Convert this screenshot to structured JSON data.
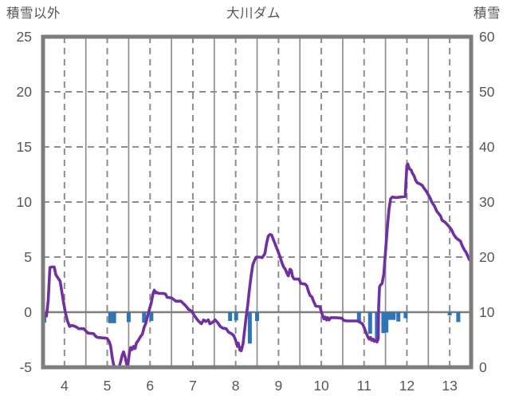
{
  "chart_data": {
    "type": "line",
    "title": "大川ダム",
    "left_axis": {
      "title": "積雪以外",
      "ticks": [
        25,
        20,
        15,
        10,
        5,
        0,
        -5
      ],
      "range": [
        -5,
        25
      ]
    },
    "right_axis": {
      "title": "積雪",
      "ticks": [
        60,
        50,
        40,
        30,
        20,
        10,
        0
      ],
      "range": [
        0,
        60
      ]
    },
    "x_axis": {
      "ticks": [
        4,
        5,
        6,
        7,
        8,
        9,
        10,
        11,
        12,
        13
      ],
      "range": [
        3.5,
        13.5
      ],
      "solid_gridlines": [
        4.5,
        5.5,
        6.5,
        7.5,
        8.5,
        9.5,
        10.5,
        11.5,
        12.5
      ],
      "dashed_gridlines": [
        4,
        5,
        6,
        7,
        8,
        9,
        10,
        11,
        12,
        13
      ]
    },
    "h_gridlines": [
      20,
      15,
      10,
      5
    ],
    "zero_line": 0,
    "legend": "none",
    "grid": "on",
    "series": [
      {
        "name": "snow-depth-line",
        "type": "line",
        "axis": "left",
        "color": "#7030a0",
        "points": [
          [
            3.5,
            -0.33
          ],
          [
            3.58,
            -0.35
          ],
          [
            3.62,
            1.0
          ],
          [
            3.66,
            4.05
          ],
          [
            3.7,
            4.1
          ],
          [
            3.76,
            4.1
          ],
          [
            3.8,
            3.4
          ],
          [
            3.85,
            3.1
          ],
          [
            3.9,
            2.8
          ],
          [
            3.97,
            1.1
          ],
          [
            4.02,
            0.0
          ],
          [
            4.07,
            -0.8
          ],
          [
            4.12,
            -1.3
          ],
          [
            4.17,
            -1.2
          ],
          [
            4.22,
            -1.25
          ],
          [
            4.28,
            -1.35
          ],
          [
            4.33,
            -1.5
          ],
          [
            4.45,
            -1.5
          ],
          [
            4.5,
            -1.7
          ],
          [
            4.55,
            -1.9
          ],
          [
            4.68,
            -1.95
          ],
          [
            4.73,
            -2.2
          ],
          [
            4.78,
            -2.3
          ],
          [
            4.95,
            -2.35
          ],
          [
            5.0,
            -2.4
          ],
          [
            5.05,
            -2.7
          ],
          [
            5.08,
            -3.1
          ],
          [
            5.12,
            -4.2
          ],
          [
            5.15,
            -4.8
          ],
          [
            5.18,
            -5.0
          ],
          [
            5.28,
            -4.95
          ],
          [
            5.32,
            -4.4
          ],
          [
            5.35,
            -3.9
          ],
          [
            5.38,
            -3.6
          ],
          [
            5.42,
            -4.1
          ],
          [
            5.45,
            -4.7
          ],
          [
            5.48,
            -4.85
          ],
          [
            5.52,
            -3.6
          ],
          [
            5.55,
            -3.2
          ],
          [
            5.58,
            -3.4
          ],
          [
            5.62,
            -3.1
          ],
          [
            5.65,
            -3.3
          ],
          [
            5.68,
            -2.8
          ],
          [
            5.72,
            -2.6
          ],
          [
            5.78,
            -2.2
          ],
          [
            5.82,
            -2.0
          ],
          [
            5.86,
            -1.4
          ],
          [
            5.9,
            -1.0
          ],
          [
            5.94,
            -0.4
          ],
          [
            5.98,
            0.2
          ],
          [
            6.03,
            0.9
          ],
          [
            6.07,
            1.7
          ],
          [
            6.1,
            2.0
          ],
          [
            6.13,
            1.75
          ],
          [
            6.16,
            1.8
          ],
          [
            6.2,
            1.7
          ],
          [
            6.3,
            1.7
          ],
          [
            6.36,
            1.65
          ],
          [
            6.4,
            1.35
          ],
          [
            6.5,
            1.3
          ],
          [
            6.55,
            1.15
          ],
          [
            6.6,
            1.0
          ],
          [
            6.72,
            1.0
          ],
          [
            6.8,
            0.7
          ],
          [
            6.85,
            0.5
          ],
          [
            6.9,
            0.25
          ],
          [
            6.97,
            0.1
          ],
          [
            7.03,
            -0.3
          ],
          [
            7.08,
            -0.55
          ],
          [
            7.14,
            -0.85
          ],
          [
            7.2,
            -1.05
          ],
          [
            7.25,
            -0.7
          ],
          [
            7.3,
            -0.85
          ],
          [
            7.36,
            -0.7
          ],
          [
            7.4,
            -1.05
          ],
          [
            7.45,
            -0.95
          ],
          [
            7.52,
            -0.7
          ],
          [
            7.58,
            -0.95
          ],
          [
            7.64,
            -1.3
          ],
          [
            7.7,
            -1.45
          ],
          [
            7.78,
            -1.5
          ],
          [
            7.83,
            -1.8
          ],
          [
            7.9,
            -1.95
          ],
          [
            7.95,
            -2.1
          ],
          [
            7.99,
            -2.45
          ],
          [
            8.02,
            -2.8
          ],
          [
            8.04,
            -3.1
          ],
          [
            8.06,
            -2.8
          ],
          [
            8.08,
            -3.1
          ],
          [
            8.1,
            -3.45
          ],
          [
            8.13,
            -3.5
          ],
          [
            8.17,
            -2.9
          ],
          [
            8.2,
            -1.9
          ],
          [
            8.24,
            -0.6
          ],
          [
            8.28,
            0.6
          ],
          [
            8.32,
            2.0
          ],
          [
            8.36,
            3.3
          ],
          [
            8.4,
            4.3
          ],
          [
            8.44,
            4.7
          ],
          [
            8.48,
            5.0
          ],
          [
            8.56,
            5.0
          ],
          [
            8.62,
            4.95
          ],
          [
            8.68,
            5.3
          ],
          [
            8.72,
            6.2
          ],
          [
            8.76,
            6.9
          ],
          [
            8.8,
            7.05
          ],
          [
            8.84,
            7.0
          ],
          [
            8.88,
            6.6
          ],
          [
            8.93,
            6.1
          ],
          [
            8.98,
            5.6
          ],
          [
            9.03,
            5.1
          ],
          [
            9.08,
            4.5
          ],
          [
            9.12,
            4.1
          ],
          [
            9.16,
            3.9
          ],
          [
            9.2,
            3.5
          ],
          [
            9.23,
            3.3
          ],
          [
            9.27,
            3.9
          ],
          [
            9.3,
            3.8
          ],
          [
            9.33,
            3.2
          ],
          [
            9.37,
            3.0
          ],
          [
            9.48,
            3.0
          ],
          [
            9.52,
            2.6
          ],
          [
            9.62,
            2.55
          ],
          [
            9.66,
            2.4
          ],
          [
            9.7,
            1.9
          ],
          [
            9.74,
            1.5
          ],
          [
            9.78,
            1.4
          ],
          [
            9.83,
            0.9
          ],
          [
            9.87,
            0.55
          ],
          [
            9.97,
            0.5
          ],
          [
            10.0,
            0.0
          ],
          [
            10.03,
            -0.3
          ],
          [
            10.06,
            -0.6
          ],
          [
            10.09,
            -0.45
          ],
          [
            10.12,
            -0.7
          ],
          [
            10.15,
            -0.5
          ],
          [
            10.18,
            -0.7
          ],
          [
            10.22,
            -0.5
          ],
          [
            10.35,
            -0.5
          ],
          [
            10.48,
            -0.55
          ],
          [
            10.53,
            -0.75
          ],
          [
            10.6,
            -0.8
          ],
          [
            10.85,
            -0.8
          ],
          [
            10.92,
            -0.95
          ],
          [
            10.97,
            -1.1
          ],
          [
            11.0,
            -1.4
          ],
          [
            11.03,
            -1.7
          ],
          [
            11.06,
            -2.0
          ],
          [
            11.09,
            -2.25
          ],
          [
            11.12,
            -2.45
          ],
          [
            11.15,
            -2.3
          ],
          [
            11.18,
            -2.55
          ],
          [
            11.21,
            -2.45
          ],
          [
            11.24,
            -2.65
          ],
          [
            11.27,
            -2.55
          ],
          [
            11.3,
            -2.7
          ],
          [
            11.33,
            -2.4
          ],
          [
            11.34,
            0.5
          ],
          [
            11.36,
            2.3
          ],
          [
            11.38,
            2.45
          ],
          [
            11.42,
            2.6
          ],
          [
            11.46,
            3.5
          ],
          [
            11.5,
            5.5
          ],
          [
            11.54,
            7.5
          ],
          [
            11.58,
            9.3
          ],
          [
            11.62,
            10.3
          ],
          [
            11.66,
            10.45
          ],
          [
            11.75,
            10.4
          ],
          [
            11.85,
            10.45
          ],
          [
            11.96,
            10.5
          ],
          [
            11.98,
            12.0
          ],
          [
            12.0,
            13.3
          ],
          [
            12.02,
            13.45
          ],
          [
            12.06,
            13.0
          ],
          [
            12.1,
            12.9
          ],
          [
            12.13,
            12.6
          ],
          [
            12.17,
            12.35
          ],
          [
            12.2,
            12.0
          ],
          [
            12.24,
            11.75
          ],
          [
            12.32,
            11.6
          ],
          [
            12.36,
            11.5
          ],
          [
            12.4,
            11.25
          ],
          [
            12.45,
            11.0
          ],
          [
            12.5,
            10.65
          ],
          [
            12.54,
            10.4
          ],
          [
            12.58,
            10.0
          ],
          [
            12.64,
            9.65
          ],
          [
            12.7,
            9.15
          ],
          [
            12.73,
            9.0
          ],
          [
            12.79,
            8.7
          ],
          [
            12.82,
            8.35
          ],
          [
            12.88,
            8.2
          ],
          [
            12.97,
            7.85
          ],
          [
            13.04,
            7.5
          ],
          [
            13.1,
            7.0
          ],
          [
            13.16,
            6.7
          ],
          [
            13.25,
            6.45
          ],
          [
            13.29,
            6.05
          ],
          [
            13.35,
            5.6
          ],
          [
            13.38,
            5.45
          ],
          [
            13.42,
            5.1
          ],
          [
            13.46,
            4.75
          ]
        ]
      },
      {
        "name": "precipitation-bars",
        "type": "bar",
        "axis": "left",
        "color": "#2e75b6",
        "points": [
          [
            3.53,
            -0.95
          ],
          [
            5.07,
            -1.0
          ],
          [
            5.16,
            -1.0
          ],
          [
            5.5,
            -0.9
          ],
          [
            5.86,
            -0.95
          ],
          [
            6.03,
            -0.8
          ],
          [
            7.87,
            -0.8
          ],
          [
            8.01,
            -0.75
          ],
          [
            8.33,
            -2.85
          ],
          [
            8.5,
            -0.8
          ],
          [
            10.88,
            -0.95
          ],
          [
            11.14,
            -1.95
          ],
          [
            11.3,
            -2.6
          ],
          [
            11.45,
            -1.9
          ],
          [
            11.52,
            -1.85
          ],
          [
            11.6,
            -0.7
          ],
          [
            11.69,
            -0.7
          ],
          [
            11.8,
            -0.85
          ],
          [
            11.97,
            -0.55
          ],
          [
            13.0,
            -0.3
          ],
          [
            13.2,
            -0.9
          ]
        ]
      }
    ],
    "colors": {
      "line": "#7030a0",
      "bar": "#2e75b6",
      "grid": "#8e8e8e",
      "border": "#7d7d7d",
      "zero_line": "#7d7d7d",
      "label_text": "#575757",
      "background": "#ffffff"
    }
  }
}
